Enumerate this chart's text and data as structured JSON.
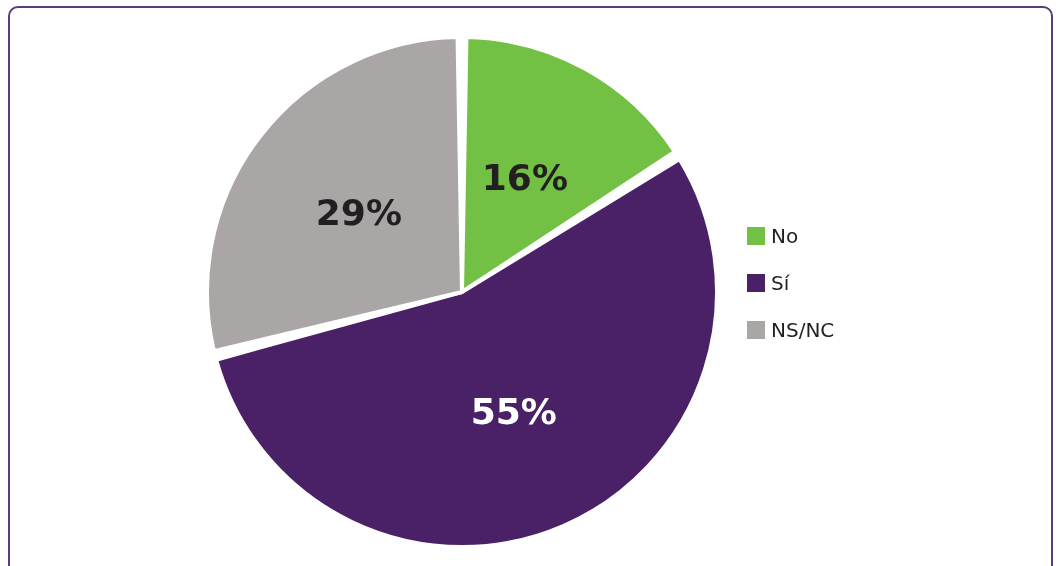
{
  "chart_data": {
    "type": "pie",
    "categories": [
      "No",
      "Sí",
      "NS/NC"
    ],
    "values": [
      16,
      55,
      29
    ],
    "colors": [
      "#72c144",
      "#4a2066",
      "#aaa6a6"
    ],
    "value_labels": [
      "16%",
      "55%",
      "29%"
    ],
    "legend": "right"
  }
}
